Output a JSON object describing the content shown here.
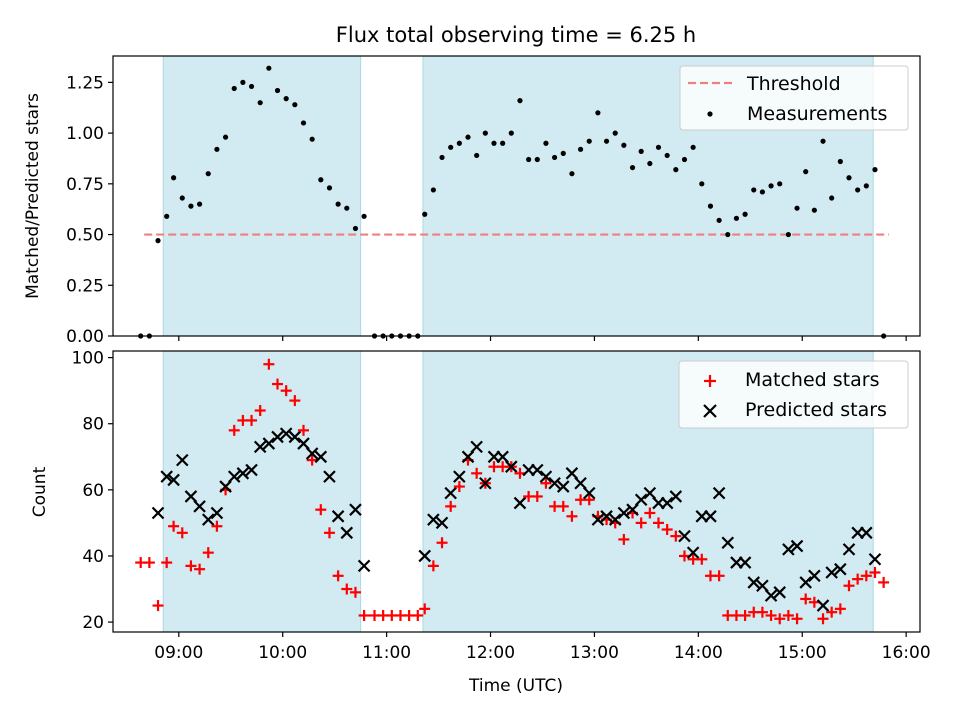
{
  "chart_data": [
    {
      "type": "scatter",
      "title": "Flux total observing time = 6.25 h",
      "xlabel": "",
      "ylabel": "Matched/Predicted stars",
      "xlim": [
        "08:22",
        "16:08"
      ],
      "ylim": [
        0,
        1.38
      ],
      "grid": false,
      "legend": "top-right",
      "y_ticks": [
        "0.00",
        "0.25",
        "0.50",
        "0.75",
        "1.00",
        "1.25"
      ],
      "shaded_intervals": [
        [
          "08:51",
          "10:45"
        ],
        [
          "11:21",
          "15:41"
        ]
      ],
      "shade_color": "#add8e6",
      "series": [
        {
          "name": "Threshold",
          "style": "dashed-line",
          "color": "#f08080",
          "x": [
            "08:40",
            "15:50"
          ],
          "y": [
            0.5,
            0.5
          ]
        },
        {
          "name": "Measurements",
          "style": "dot",
          "color": "#000000",
          "x": [
            "08:38",
            "08:43",
            "08:48",
            "08:53",
            "08:57",
            "09:02",
            "09:07",
            "09:12",
            "09:17",
            "09:22",
            "09:27",
            "09:32",
            "09:37",
            "09:42",
            "09:47",
            "09:52",
            "09:57",
            "10:02",
            "10:07",
            "10:12",
            "10:17",
            "10:22",
            "10:27",
            "10:32",
            "10:37",
            "10:42",
            "10:47",
            "10:53",
            "10:58",
            "11:03",
            "11:08",
            "11:13",
            "11:18",
            "11:22",
            "11:27",
            "11:32",
            "11:37",
            "11:42",
            "11:47",
            "11:52",
            "11:57",
            "12:02",
            "12:07",
            "12:12",
            "12:17",
            "12:22",
            "12:27",
            "12:32",
            "12:37",
            "12:42",
            "12:47",
            "12:52",
            "12:57",
            "13:02",
            "13:07",
            "13:12",
            "13:17",
            "13:22",
            "13:27",
            "13:32",
            "13:37",
            "13:42",
            "13:47",
            "13:52",
            "13:57",
            "14:02",
            "14:07",
            "14:12",
            "14:17",
            "14:22",
            "14:27",
            "14:32",
            "14:37",
            "14:42",
            "14:47",
            "14:52",
            "14:57",
            "15:02",
            "15:07",
            "15:12",
            "15:17",
            "15:22",
            "15:27",
            "15:32",
            "15:37",
            "15:42",
            "15:47"
          ],
          "y": [
            0.0,
            0.0,
            0.47,
            0.59,
            0.78,
            0.68,
            0.64,
            0.65,
            0.8,
            0.92,
            0.98,
            1.22,
            1.25,
            1.23,
            1.15,
            1.32,
            1.21,
            1.17,
            1.14,
            1.05,
            0.97,
            0.77,
            0.73,
            0.65,
            0.63,
            0.53,
            0.59,
            0.0,
            0.0,
            0.0,
            0.0,
            0.0,
            0.0,
            0.6,
            0.72,
            0.88,
            0.93,
            0.95,
            0.98,
            0.89,
            1.0,
            0.95,
            0.95,
            1.0,
            1.16,
            0.87,
            0.87,
            0.95,
            0.88,
            0.9,
            0.8,
            0.92,
            0.96,
            1.1,
            0.96,
            1.0,
            0.94,
            0.83,
            0.91,
            0.85,
            0.93,
            0.89,
            0.82,
            0.87,
            0.93,
            0.75,
            0.64,
            0.57,
            0.5,
            0.58,
            0.6,
            0.72,
            0.71,
            0.74,
            0.75,
            0.5,
            0.63,
            0.81,
            0.62,
            0.96,
            0.68,
            0.86,
            0.78,
            0.72,
            0.74,
            0.82,
            0.0
          ]
        }
      ]
    },
    {
      "type": "scatter",
      "title": "",
      "xlabel": "Time (UTC)",
      "ylabel": "Count",
      "xlim": [
        "08:22",
        "16:08"
      ],
      "ylim": [
        17,
        102
      ],
      "grid": false,
      "legend": "top-right",
      "x_ticks": [
        "09:00",
        "10:00",
        "11:00",
        "12:00",
        "13:00",
        "14:00",
        "15:00",
        "16:00"
      ],
      "y_ticks": [
        "20",
        "40",
        "60",
        "80",
        "100"
      ],
      "shaded_intervals": [
        [
          "08:51",
          "10:45"
        ],
        [
          "11:21",
          "15:41"
        ]
      ],
      "shade_color": "#add8e6",
      "x": [
        "08:38",
        "08:43",
        "08:48",
        "08:53",
        "08:57",
        "09:02",
        "09:07",
        "09:12",
        "09:17",
        "09:22",
        "09:27",
        "09:32",
        "09:37",
        "09:42",
        "09:47",
        "09:52",
        "09:57",
        "10:02",
        "10:07",
        "10:12",
        "10:17",
        "10:22",
        "10:27",
        "10:32",
        "10:37",
        "10:42",
        "10:47",
        "10:53",
        "10:58",
        "11:03",
        "11:08",
        "11:13",
        "11:18",
        "11:22",
        "11:27",
        "11:32",
        "11:37",
        "11:42",
        "11:47",
        "11:52",
        "11:57",
        "12:02",
        "12:07",
        "12:12",
        "12:17",
        "12:22",
        "12:27",
        "12:32",
        "12:37",
        "12:42",
        "12:47",
        "12:52",
        "12:57",
        "13:02",
        "13:07",
        "13:12",
        "13:17",
        "13:22",
        "13:27",
        "13:32",
        "13:37",
        "13:42",
        "13:47",
        "13:52",
        "13:57",
        "14:02",
        "14:07",
        "14:12",
        "14:17",
        "14:22",
        "14:27",
        "14:32",
        "14:37",
        "14:42",
        "14:47",
        "14:52",
        "14:57",
        "15:02",
        "15:07",
        "15:12",
        "15:17",
        "15:22",
        "15:27",
        "15:32",
        "15:37",
        "15:42",
        "15:47"
      ],
      "series": [
        {
          "name": "Matched stars",
          "style": "plus",
          "color": "#ff0000",
          "values": [
            38,
            38,
            25,
            38,
            49,
            47,
            37,
            36,
            41,
            49,
            60,
            78,
            81,
            81,
            84,
            98,
            92,
            90,
            87,
            78,
            69,
            54,
            47,
            34,
            30,
            29,
            22,
            22,
            22,
            22,
            22,
            22,
            22,
            24,
            37,
            44,
            55,
            61,
            69,
            65,
            62,
            67,
            67,
            67,
            65,
            58,
            58,
            62,
            55,
            55,
            52,
            57,
            57,
            52,
            51,
            50,
            45,
            53,
            50,
            53,
            50,
            48,
            46,
            40,
            39,
            39,
            34,
            34,
            22,
            22,
            22,
            23,
            23,
            22,
            21,
            22,
            21,
            27,
            26,
            21,
            23,
            24,
            31,
            33,
            34,
            35,
            32
          ]
        },
        {
          "name": "Predicted stars",
          "style": "x",
          "color": "#000000",
          "values": [
            null,
            null,
            53,
            64,
            63,
            69,
            58,
            55,
            51,
            53,
            61,
            64,
            65,
            66,
            73,
            74,
            76,
            77,
            76,
            74,
            71,
            70,
            64,
            52,
            47,
            54,
            37,
            null,
            null,
            null,
            null,
            null,
            null,
            40,
            51,
            50,
            59,
            64,
            70,
            73,
            62,
            70,
            70,
            67,
            56,
            66,
            66,
            64,
            62,
            61,
            65,
            62,
            59,
            51,
            52,
            51,
            53,
            54,
            57,
            59,
            56,
            56,
            58,
            46,
            41,
            52,
            52,
            59,
            44,
            38,
            38,
            32,
            31,
            28,
            29,
            42,
            43,
            32,
            34,
            25,
            35,
            36,
            42,
            47,
            47,
            39,
            null
          ]
        }
      ]
    }
  ]
}
